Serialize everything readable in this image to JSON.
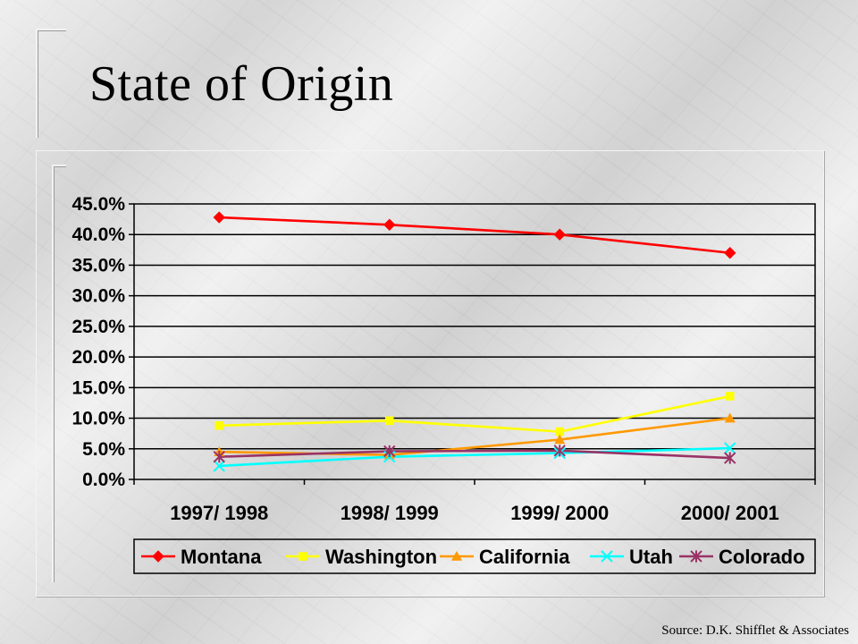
{
  "slide": {
    "title": "State of Origin",
    "source": "Source: D.K. Shifflet & Associates"
  },
  "chart_data": {
    "type": "line",
    "categories": [
      "1997/ 1998",
      "1998/ 1999",
      "1999/ 2000",
      "2000/ 2001"
    ],
    "ylim": [
      0,
      45
    ],
    "yticks": [
      0,
      5,
      10,
      15,
      20,
      25,
      30,
      35,
      40,
      45
    ],
    "y_tick_format": "percent_1dp",
    "grid": "horizontal",
    "legend_position": "bottom",
    "series": [
      {
        "name": "Montana",
        "values": [
          42.8,
          41.6,
          40.0,
          37.0
        ],
        "color": "#ff0000",
        "marker": "diamond"
      },
      {
        "name": "Washington",
        "values": [
          8.8,
          9.6,
          7.8,
          13.6
        ],
        "color": "#ffff00",
        "marker": "square"
      },
      {
        "name": "California",
        "values": [
          4.5,
          4.0,
          6.5,
          10.0
        ],
        "color": "#ff9900",
        "marker": "triangle"
      },
      {
        "name": "Utah",
        "values": [
          2.2,
          3.7,
          4.3,
          5.1
        ],
        "color": "#00ffff",
        "marker": "x"
      },
      {
        "name": "Colorado",
        "values": [
          3.7,
          4.6,
          4.7,
          3.5
        ],
        "color": "#993366",
        "marker": "star"
      }
    ]
  }
}
